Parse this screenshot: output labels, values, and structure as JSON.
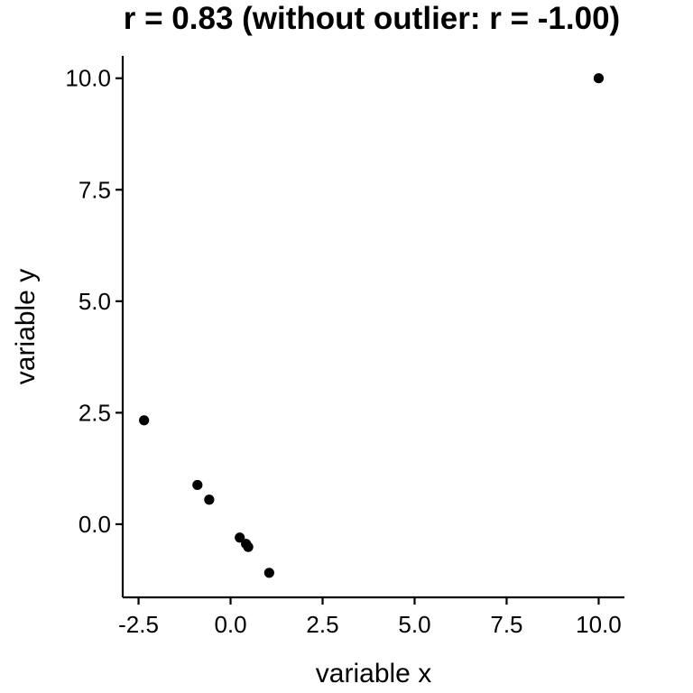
{
  "chart_data": {
    "type": "scatter",
    "title": "r = 0.83 (without outlier: r = -1.00)",
    "xlabel": "variable x",
    "ylabel": "variable y",
    "xlim": [
      -2.93,
      10.7
    ],
    "ylim": [
      -1.64,
      10.5
    ],
    "grid": false,
    "x_ticks": [
      -2.5,
      0.0,
      2.5,
      5.0,
      7.5,
      10.0
    ],
    "x_tick_labels": [
      "-2.5",
      "0.0",
      "2.5",
      "5.0",
      "7.5",
      "10.0"
    ],
    "y_ticks": [
      0.0,
      2.5,
      5.0,
      7.5,
      10.0
    ],
    "y_tick_labels": [
      "0.0",
      "2.5",
      "5.0",
      "7.5",
      "10.0"
    ],
    "series": [
      {
        "x": [
          -2.35,
          -0.9,
          -0.58,
          0.25,
          0.42,
          0.48,
          1.05,
          10.0
        ],
        "y": [
          2.33,
          0.88,
          0.55,
          -0.3,
          -0.44,
          -0.51,
          -1.09,
          10.0
        ]
      }
    ]
  }
}
